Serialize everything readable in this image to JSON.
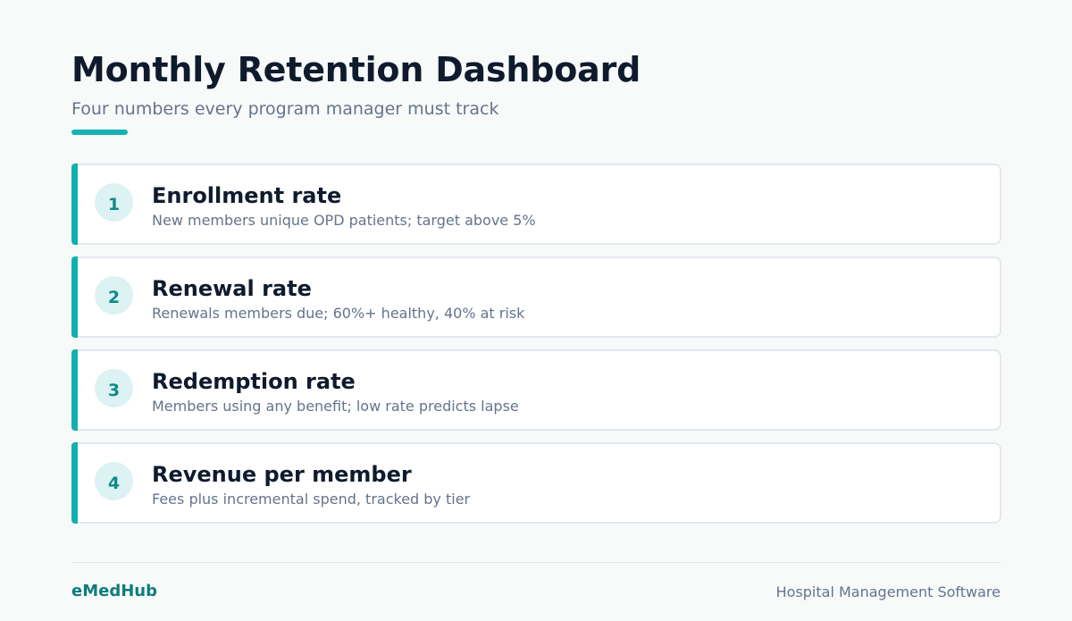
{
  "header": {
    "title": "Monthly Retention Dashboard",
    "subtitle": "Four numbers every program manager must track"
  },
  "metrics": [
    {
      "number": "1",
      "title": "Enrollment rate",
      "description": "New members unique OPD patients; target above 5%"
    },
    {
      "number": "2",
      "title": "Renewal rate",
      "description": "Renewals members due; 60%+ healthy, 40% at risk"
    },
    {
      "number": "3",
      "title": "Redemption rate",
      "description": "Members using any benefit; low rate predicts lapse"
    },
    {
      "number": "4",
      "title": "Revenue per member",
      "description": "Fees plus incremental spend, tracked by tier"
    }
  ],
  "footer": {
    "brand": "eMedHub",
    "tagline": "Hospital Management Software"
  },
  "colors": {
    "accent": "#14b2b2",
    "brand": "#0e7c7b",
    "title": "#0f1b2d",
    "muted": "#64748b"
  }
}
